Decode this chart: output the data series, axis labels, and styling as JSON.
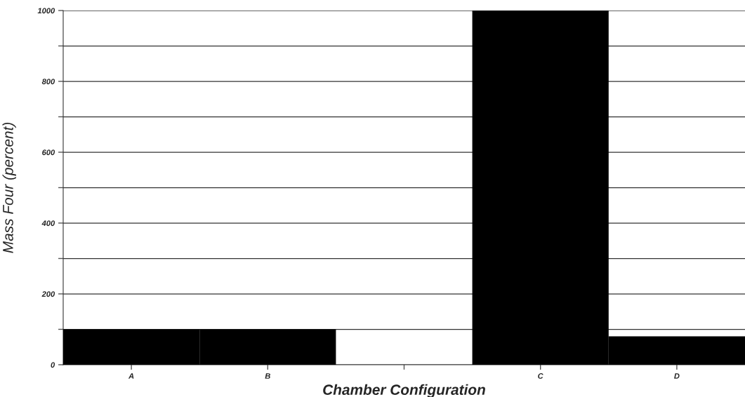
{
  "chart_data": {
    "type": "bar",
    "xlabel": "Chamber Configuration",
    "ylabel": "Mass Four (percent)",
    "categories": [
      "A",
      "B",
      null,
      "C",
      "D"
    ],
    "values": [
      100,
      100,
      null,
      1000,
      80
    ],
    "color": "#000000",
    "ylim": [
      0,
      1000
    ],
    "yticks": [
      0,
      {
        "value": 100,
        "label": null
      },
      200,
      {
        "value": 300,
        "label": null
      },
      400,
      {
        "value": 500,
        "label": null
      },
      600,
      {
        "value": 700,
        "label": null
      },
      800,
      {
        "value": 900,
        "label": null
      },
      1000
    ],
    "grid": "y"
  }
}
